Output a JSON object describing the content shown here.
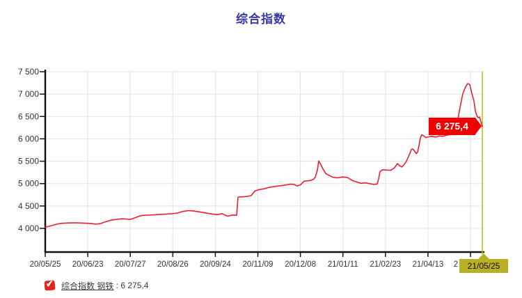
{
  "title": "综合指数",
  "colors": {
    "title_blue": "#3539a6",
    "line_red": "#ec1e2e",
    "flag_red": "#ee0000",
    "crosshair_yellow": "#c9bb00",
    "highlight_olive": "#b9b125",
    "grid_gray": "#e2e2e2",
    "axis_black": "#111111",
    "label_text": "#333333"
  },
  "chart_data": {
    "type": "line",
    "title": "综合指数",
    "series": [
      {
        "name": "综合指数 钢铁",
        "color": "#ec1e2e",
        "last_value": 6275.4,
        "last_value_label": "6 275,4"
      }
    ],
    "y_axis": {
      "tick_values": [
        7500,
        7000,
        6500,
        6000,
        5500,
        5000,
        4500,
        4000
      ],
      "tick_labels": [
        "7 500",
        "7 000",
        "6 500",
        "6 000",
        "5 500",
        "5 000",
        "4 500",
        "4 000"
      ],
      "ylim_top": 7500,
      "ylim_bottom_label": 4000
    },
    "x_axis": {
      "tick_labels": [
        "20/05/25",
        "20/06/23",
        "20/07/27",
        "20/08/26",
        "20/09/24",
        "20/11/09",
        "20/12/08",
        "21/01/11",
        "21/02/23",
        "21/04/13",
        "2"
      ],
      "last_label_partially_hidden": true
    },
    "crosshair_label": "21/05/25",
    "value_flag": "6 275,4",
    "grid": true,
    "legend_position": "bottom-left",
    "points": [
      [
        65,
        4030
      ],
      [
        70,
        4045
      ],
      [
        76,
        4070
      ],
      [
        83,
        4100
      ],
      [
        90,
        4115
      ],
      [
        100,
        4122
      ],
      [
        110,
        4125
      ],
      [
        120,
        4118
      ],
      [
        130,
        4110
      ],
      [
        138,
        4095
      ],
      [
        145,
        4110
      ],
      [
        152,
        4150
      ],
      [
        160,
        4183
      ],
      [
        168,
        4202
      ],
      [
        175,
        4215
      ],
      [
        181,
        4210
      ],
      [
        186,
        4196
      ],
      [
        192,
        4225
      ],
      [
        198,
        4262
      ],
      [
        204,
        4290
      ],
      [
        212,
        4295
      ],
      [
        222,
        4303
      ],
      [
        231,
        4312
      ],
      [
        239,
        4320
      ],
      [
        247,
        4328
      ],
      [
        255,
        4342
      ],
      [
        262,
        4375
      ],
      [
        270,
        4396
      ],
      [
        277,
        4390
      ],
      [
        284,
        4375
      ],
      [
        291,
        4357
      ],
      [
        298,
        4338
      ],
      [
        306,
        4318
      ],
      [
        313,
        4306
      ],
      [
        319,
        4330
      ],
      [
        327,
        4272
      ],
      [
        334,
        4298
      ],
      [
        340,
        4293
      ],
      [
        342,
        4700
      ],
      [
        349,
        4705
      ],
      [
        356,
        4716
      ],
      [
        361,
        4732
      ],
      [
        366,
        4832
      ],
      [
        371,
        4862
      ],
      [
        379,
        4882
      ],
      [
        387,
        4916
      ],
      [
        395,
        4936
      ],
      [
        403,
        4952
      ],
      [
        410,
        4968
      ],
      [
        417,
        4986
      ],
      [
        422,
        4984
      ],
      [
        427,
        4948
      ],
      [
        432,
        4976
      ],
      [
        437,
        5054
      ],
      [
        444,
        5064
      ],
      [
        450,
        5090
      ],
      [
        453,
        5142
      ],
      [
        456,
        5302
      ],
      [
        458,
        5506
      ],
      [
        461,
        5422
      ],
      [
        464,
        5330
      ],
      [
        468,
        5226
      ],
      [
        472,
        5192
      ],
      [
        478,
        5142
      ],
      [
        485,
        5130
      ],
      [
        492,
        5148
      ],
      [
        499,
        5138
      ],
      [
        506,
        5072
      ],
      [
        513,
        5034
      ],
      [
        519,
        5006
      ],
      [
        525,
        5018
      ],
      [
        531,
        5000
      ],
      [
        537,
        4982
      ],
      [
        542,
        4992
      ],
      [
        544,
        5108
      ],
      [
        546,
        5268
      ],
      [
        550,
        5312
      ],
      [
        556,
        5302
      ],
      [
        562,
        5300
      ],
      [
        567,
        5356
      ],
      [
        571,
        5448
      ],
      [
        574,
        5404
      ],
      [
        577,
        5370
      ],
      [
        580,
        5412
      ],
      [
        584,
        5502
      ],
      [
        588,
        5642
      ],
      [
        591,
        5762
      ],
      [
        593,
        5776
      ],
      [
        596,
        5720
      ],
      [
        598,
        5670
      ],
      [
        600,
        5702
      ],
      [
        602,
        5846
      ],
      [
        604,
        6022
      ],
      [
        606,
        6090
      ],
      [
        609,
        6064
      ],
      [
        612,
        6028
      ],
      [
        616,
        6046
      ],
      [
        621,
        6056
      ],
      [
        626,
        6038
      ],
      [
        631,
        6066
      ],
      [
        636,
        6056
      ],
      [
        641,
        6076
      ],
      [
        646,
        6092
      ],
      [
        651,
        6162
      ],
      [
        655,
        6302
      ],
      [
        658,
        6442
      ],
      [
        661,
        6702
      ],
      [
        665,
        7012
      ],
      [
        669,
        7162
      ],
      [
        672,
        7236
      ],
      [
        675,
        7216
      ],
      [
        678,
        7012
      ],
      [
        681,
        6842
      ],
      [
        683,
        6622
      ],
      [
        685,
        6522
      ],
      [
        687,
        6472
      ],
      [
        689,
        6488
      ],
      [
        691,
        6382
      ],
      [
        693,
        6275.4
      ]
    ]
  },
  "legend": {
    "checkbox_checked": true,
    "check_glyph": "✔",
    "label": "综合指数 钢铁",
    "value_text": " : 6 275,4"
  }
}
